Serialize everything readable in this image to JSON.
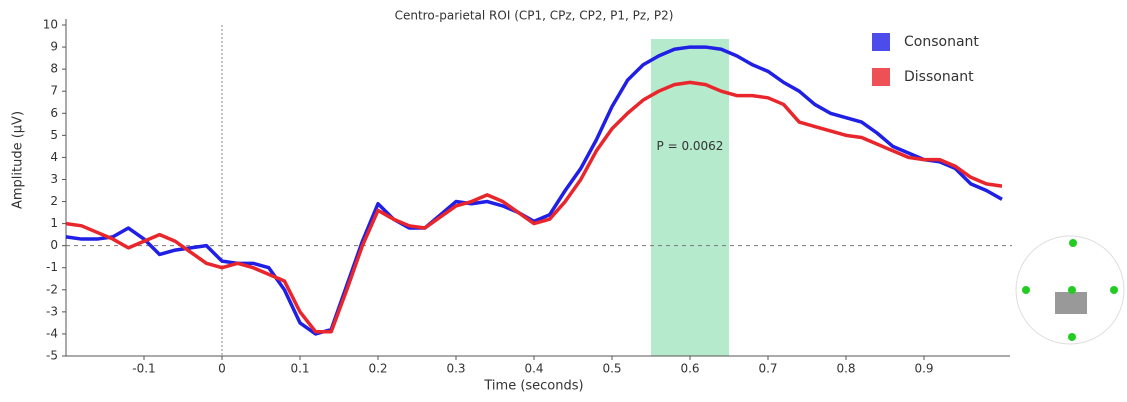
{
  "chart_data": {
    "type": "line",
    "title": "Centro-parietal ROI (CP1, CPz, CP2, P1, Pz, P2)",
    "x_label": "Time (seconds)",
    "y_label": "Amplitude (µV)",
    "x": [
      -0.2,
      -0.18,
      -0.16,
      -0.14,
      -0.12,
      -0.1,
      -0.08,
      -0.06,
      -0.04,
      -0.02,
      0,
      0.02,
      0.04,
      0.06,
      0.08,
      0.1,
      0.12,
      0.14,
      0.16,
      0.18,
      0.2,
      0.22,
      0.24,
      0.26,
      0.28,
      0.3,
      0.32,
      0.34,
      0.36,
      0.38,
      0.4,
      0.42,
      0.44,
      0.46,
      0.48,
      0.5,
      0.52,
      0.54,
      0.56,
      0.58,
      0.6,
      0.62,
      0.64,
      0.66,
      0.68,
      0.7,
      0.72,
      0.74,
      0.76,
      0.78,
      0.8,
      0.82,
      0.84,
      0.86,
      0.88,
      0.9,
      0.92,
      0.94,
      0.96,
      0.98,
      1.0
    ],
    "series": [
      {
        "name": "Consonant",
        "color": "#1f1fe6",
        "values": [
          0.4,
          0.3,
          0.3,
          0.4,
          0.8,
          0.3,
          -0.4,
          -0.2,
          -0.1,
          0.0,
          -0.7,
          -0.8,
          -0.8,
          -1.0,
          -2.0,
          -3.5,
          -4.0,
          -3.8,
          -1.8,
          0.2,
          1.9,
          1.2,
          0.8,
          0.8,
          1.4,
          2.0,
          1.9,
          2.0,
          1.8,
          1.5,
          1.1,
          1.4,
          2.5,
          3.5,
          4.8,
          6.3,
          7.5,
          8.2,
          8.6,
          8.9,
          9.0,
          9.0,
          8.9,
          8.6,
          8.2,
          7.9,
          7.4,
          7.0,
          6.4,
          6.0,
          5.8,
          5.6,
          5.1,
          4.5,
          4.2,
          3.9,
          3.8,
          3.5,
          2.8,
          2.5,
          2.1
        ]
      },
      {
        "name": "Dissonant",
        "color": "#e8262b",
        "values": [
          1.0,
          0.9,
          0.6,
          0.3,
          -0.1,
          0.2,
          0.5,
          0.2,
          -0.3,
          -0.8,
          -1.0,
          -0.8,
          -1.0,
          -1.3,
          -1.6,
          -3.0,
          -3.9,
          -3.9,
          -2.0,
          0.0,
          1.6,
          1.2,
          0.9,
          0.8,
          1.3,
          1.8,
          2.0,
          2.3,
          2.0,
          1.5,
          1.0,
          1.2,
          2.0,
          3.0,
          4.3,
          5.3,
          6.0,
          6.6,
          7.0,
          7.3,
          7.4,
          7.3,
          7.0,
          6.8,
          6.8,
          6.7,
          6.4,
          5.6,
          5.4,
          5.2,
          5.0,
          4.9,
          4.6,
          4.3,
          4.0,
          3.9,
          3.9,
          3.6,
          3.1,
          2.8,
          2.7
        ]
      }
    ],
    "highlight": {
      "x": [
        0.55,
        0.65
      ],
      "color": "#a8e6c4",
      "label": "P = 0.0062"
    },
    "xlim": [
      -0.2,
      1.0
    ],
    "xticks": [
      -0.1,
      0,
      0.1,
      0.2,
      0.3,
      0.4,
      0.5,
      0.6,
      0.7,
      0.8,
      0.9
    ],
    "ylim": [
      -5,
      10
    ],
    "yticks": [
      -5,
      -4,
      -3,
      -2,
      -1,
      0,
      1,
      2,
      3,
      4,
      5,
      6,
      7,
      8,
      9,
      10
    ],
    "grid": false,
    "legend": "top-right"
  }
}
